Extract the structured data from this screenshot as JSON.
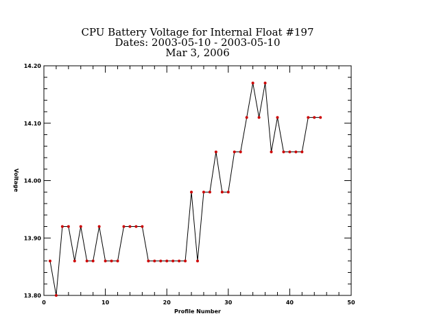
{
  "chart_data": {
    "type": "line",
    "title_lines": [
      "CPU Battery Voltage for Internal Float #197",
      "Dates:  2003-05-10 -  2003-05-10",
      "Mar  3, 2006"
    ],
    "xlabel": "Profile Number",
    "ylabel": "Voltage",
    "xlim": [
      0,
      50
    ],
    "ylim": [
      13.8,
      14.2
    ],
    "x_ticks": [
      0,
      10,
      20,
      30,
      40,
      50
    ],
    "x_tick_labels": [
      "0",
      "10",
      "20",
      "30",
      "40",
      "50"
    ],
    "y_ticks": [
      13.8,
      13.9,
      14.0,
      14.1,
      14.2
    ],
    "y_tick_labels": [
      "13.80",
      "13.90",
      "14.00",
      "14.10",
      "14.20"
    ],
    "x_minor_step": 2,
    "y_minor_step": 0.02,
    "grid": false,
    "line_color": "#000000",
    "marker_color": "#cc0000",
    "series": [
      {
        "x": [
          1,
          2,
          3,
          4,
          5,
          6,
          7,
          8,
          9,
          10,
          11,
          12,
          13,
          14,
          15,
          16,
          17,
          18,
          19,
          20,
          21,
          22,
          23,
          24,
          25,
          26,
          27,
          28,
          29,
          30,
          31,
          32,
          33,
          34,
          35,
          36,
          37,
          38,
          39,
          40,
          41,
          42,
          43,
          44,
          45
        ],
        "y": [
          13.86,
          13.8,
          13.92,
          13.92,
          13.86,
          13.92,
          13.86,
          13.86,
          13.92,
          13.86,
          13.86,
          13.86,
          13.92,
          13.92,
          13.92,
          13.92,
          13.86,
          13.86,
          13.86,
          13.86,
          13.86,
          13.86,
          13.86,
          13.98,
          13.86,
          13.98,
          13.98,
          14.05,
          13.98,
          13.98,
          14.05,
          14.05,
          14.11,
          14.17,
          14.11,
          14.17,
          14.05,
          14.11,
          14.05,
          14.05,
          14.05,
          14.05,
          14.11,
          14.11,
          14.11
        ]
      }
    ]
  }
}
